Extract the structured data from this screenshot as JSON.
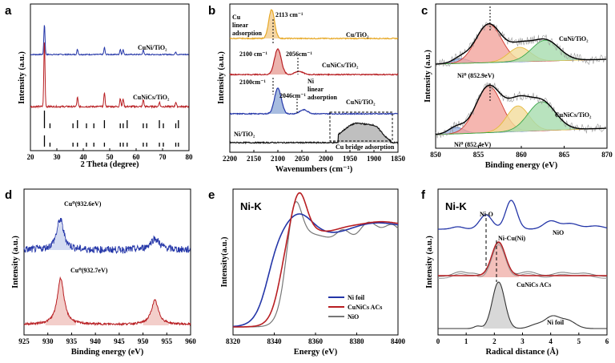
{
  "colors": {
    "blue": "#2436a8",
    "red": "#b81e22",
    "orange": "#e7a928",
    "gray": "#666666",
    "black": "#111111",
    "green": "#3aa64a",
    "yellow": "#e6c34c",
    "pink": "#e59a92",
    "lightblue": "#8aa6d6"
  },
  "chart_data": [
    {
      "panel": "a",
      "type": "line",
      "title": "",
      "xlabel": "2 Theta (degree)",
      "ylabel": "Intensity (a.u.)",
      "xlim": [
        20,
        80
      ],
      "xticks": [
        20,
        30,
        40,
        50,
        60,
        70,
        80
      ],
      "series": [
        {
          "name": "CuNi/TiO2",
          "color": "#2436a8",
          "peaks": [
            [
              25.3,
              7
            ],
            [
              37.8,
              1.2
            ],
            [
              48.0,
              1.6
            ],
            [
              54.0,
              1.2
            ],
            [
              55.1,
              1.1
            ],
            [
              62.7,
              1.0
            ],
            [
              75.0,
              0.6
            ]
          ]
        },
        {
          "name": "CuNiCs/TiO2",
          "color": "#b81e22",
          "peaks": [
            [
              25.3,
              10
            ],
            [
              37.8,
              1.4
            ],
            [
              48.0,
              2.2
            ],
            [
              54.0,
              1.3
            ],
            [
              55.1,
              1.2
            ],
            [
              62.7,
              1.1
            ],
            [
              68.8,
              0.7
            ],
            [
              75.0,
              0.7
            ]
          ]
        }
      ],
      "reference_lines": [
        25.3,
        27.4,
        36.1,
        37.8,
        41.2,
        44.0,
        48.0,
        54.0,
        55.1,
        56.6,
        62.7,
        64.0,
        68.8,
        70.3,
        75.0,
        76.0
      ],
      "labels": {
        "s1": "CuNi/TiO₂",
        "s2": "CuNiCs/TiO₂"
      }
    },
    {
      "panel": "b",
      "type": "line",
      "xlabel": "Wavenumbers (cm⁻¹)",
      "ylabel": "Intensity (a.u.)",
      "xlim": [
        2200,
        1850
      ],
      "xticks": [
        2200,
        2150,
        2100,
        2050,
        2000,
        1950,
        1900,
        1850
      ],
      "series": [
        {
          "name": "Cu/TiO2",
          "color": "#e7a928",
          "peak": 2113
        },
        {
          "name": "CuNiCs/TiO2",
          "color": "#b81e22",
          "peak": 2100,
          "shoulder": 2056
        },
        {
          "name": "CuNi/TiO2",
          "color": "#2436a8",
          "peak": 2100,
          "shoulder": 2046
        },
        {
          "name": "Ni/TiO2",
          "color": "#111111",
          "bridge_band": [
            1970,
            1870
          ]
        }
      ],
      "annotations": {
        "cu_lin": "Cu",
        "cu_lin2": "linear",
        "cu_lin3": "adsorption",
        "p2113": "2113 cm⁻¹",
        "p2100a": "2100 cm⁻¹",
        "p2056": "2056cm⁻¹",
        "p2100b": "2100cm⁻¹",
        "p2046": "2046cm⁻¹",
        "ni_lin": "Ni",
        "ni_lin2": "linear",
        "ni_lin3": "adsorption",
        "bridge": "Cu bridge adsorption"
      },
      "labels": {
        "s1": "Cu/TiO₂",
        "s2": "CuNiCs/TiO₂",
        "s3": "CuNi/TiO₂",
        "s4": "Ni/TiO₂"
      }
    },
    {
      "panel": "c",
      "type": "line",
      "xlabel": "Binding energy (eV)",
      "ylabel": "Intensity (a.u.)",
      "xlim": [
        850,
        870
      ],
      "xticks": [
        850,
        855,
        860,
        865,
        870
      ],
      "series": [
        {
          "name": "CuNi/TiO2",
          "ni0": 852.9,
          "components": [
            852.9,
            856.2,
            859.8,
            862.8
          ]
        },
        {
          "name": "CuNiCs/TiO2",
          "ni0": 852.4,
          "components": [
            852.4,
            856.2,
            859.6,
            862.4
          ]
        }
      ],
      "labels": {
        "s1": "CuNi/TiO₂",
        "s2": "CuNiCs/TiO₂",
        "ni1": "Ni⁰ (852.9eV)",
        "ni2": "Ni⁰ (852.4eV)"
      }
    },
    {
      "panel": "d",
      "type": "line",
      "xlabel": "Binding energy (eV)",
      "ylabel": "Intensity (a.u.)",
      "xlim": [
        925,
        960
      ],
      "xticks": [
        925,
        930,
        935,
        940,
        945,
        950,
        955,
        960
      ],
      "series": [
        {
          "name": "top",
          "color": "#2436a8",
          "peaks": [
            932.6,
            952.5
          ]
        },
        {
          "name": "bottom",
          "color": "#b81e22",
          "peaks": [
            932.7,
            952.5
          ]
        }
      ],
      "labels": {
        "cu1": "Cu⁰(932.6eV)",
        "cu2": "Cu⁰(932.7eV)"
      }
    },
    {
      "panel": "e",
      "type": "line",
      "title": "Ni-K",
      "xlabel": "Energy (eV)",
      "ylabel": "Intensity(a.u.)",
      "xlim": [
        8320,
        8400
      ],
      "xticks": [
        8320,
        8340,
        8360,
        8380,
        8400
      ],
      "series": [
        {
          "name": "Ni foil",
          "color": "#2436a8"
        },
        {
          "name": "CuNiCs ACs",
          "color": "#b81e22"
        },
        {
          "name": "NiO",
          "color": "#777777"
        }
      ],
      "legend": [
        "Ni foil",
        "CuNiCs ACs",
        "NiO"
      ]
    },
    {
      "panel": "f",
      "type": "line",
      "title": "Ni-K",
      "xlabel": "Radical distance (Å)",
      "ylabel": "Intensity (a.u.)",
      "xlim": [
        0,
        6
      ],
      "xticks": [
        0,
        1,
        2,
        3,
        4,
        5,
        6
      ],
      "series": [
        {
          "name": "NiO",
          "color": "#2436a8",
          "peaks": [
            1.7,
            2.6,
            4.0,
            4.7
          ]
        },
        {
          "name": "CuNiCs ACs",
          "color": "#b81e22",
          "peaks": [
            2.15
          ]
        },
        {
          "name": "Ni foil",
          "color": "#333333",
          "peaks": [
            2.15,
            4.0,
            4.6
          ]
        }
      ],
      "annotations": {
        "nio": "Ni-O",
        "nicu": "Ni-Cu(Ni)"
      },
      "labels": {
        "s1": "NiO",
        "s2": "CuNiCs ACs",
        "s3": "Ni foil"
      }
    }
  ]
}
